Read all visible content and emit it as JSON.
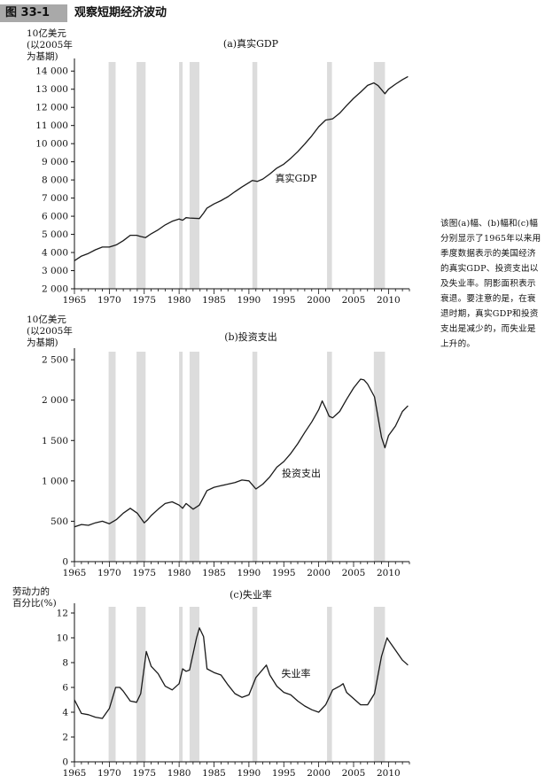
{
  "figure": {
    "label": "图 33-1",
    "title": "观察短期经济波动",
    "caption": "该图(a)幅、(b)幅和(c)幅分别显示了1965年以来用季度数据表示的美国经济的真实GDP、投资支出以及失业率。阴影面积表示衰退。要注意的是，在衰退时期，真实GDP和投资支出是减少的，而失业是上升的。"
  },
  "panels": [
    {
      "title": "(a)真实GDP",
      "ylabel_lines": [
        "10亿美元",
        "(以2005年",
        "为基期)"
      ],
      "annotation": "真实GDP"
    },
    {
      "title": "(b)投资支出",
      "ylabel_lines": [
        "10亿美元",
        "(以2005年",
        "为基期)"
      ],
      "annotation": "投资支出"
    },
    {
      "title": "(c)失业率",
      "ylabel_lines": [
        "劳动力的",
        "百分比(%)"
      ],
      "annotation": "失业率"
    }
  ],
  "chart_data": [
    {
      "type": "line",
      "title": "(a)真实GDP",
      "ylabel": "10亿美元(以2005年为基期)",
      "xlim": [
        1965,
        2013
      ],
      "ylim": [
        2000,
        14500
      ],
      "x_ticks": [
        1965,
        1970,
        1975,
        1980,
        1985,
        1990,
        1995,
        2000,
        2005,
        2010
      ],
      "x_tick_labels": [
        "1965",
        "1970",
        "1975",
        "1980",
        "1985",
        "1990",
        "1995",
        "2000",
        "2005",
        "2010"
      ],
      "y_ticks": [
        2000,
        3000,
        4000,
        5000,
        6000,
        7000,
        8000,
        9000,
        10000,
        11000,
        12000,
        13000,
        14000
      ],
      "y_tick_labels": [
        "2 000",
        "3 000",
        "4 000",
        "5 000",
        "6 000",
        "7 000",
        "8 000",
        "9 000",
        "10 000",
        "11 000",
        "12 000",
        "13 000",
        "14 000"
      ],
      "recessions": [
        [
          1969.9,
          1970.9
        ],
        [
          1973.9,
          1975.2
        ],
        [
          1980.0,
          1980.5
        ],
        [
          1981.5,
          1982.9
        ],
        [
          1990.5,
          1991.2
        ],
        [
          2001.2,
          2001.9
        ],
        [
          2007.9,
          2009.5
        ]
      ],
      "series": [
        {
          "x": [
            1965,
            1966,
            1967,
            1968,
            1969,
            1970,
            1971,
            1972,
            1973,
            1973.9,
            1974.5,
            1975.2,
            1976,
            1977,
            1978,
            1979,
            1980,
            1980.5,
            1981,
            1981.5,
            1982.9,
            1983.5,
            1984,
            1985,
            1986,
            1987,
            1988,
            1989,
            1990,
            1990.5,
            1991.2,
            1992,
            1993,
            1994,
            1995,
            1996,
            1997,
            1998,
            1999,
            2000,
            2001,
            2001.5,
            2002,
            2003,
            2004,
            2005,
            2006,
            2007,
            2007.9,
            2008.5,
            2009.5,
            2010,
            2011,
            2012,
            2012.8
          ],
          "y": [
            3550,
            3800,
            3950,
            4150,
            4300,
            4300,
            4420,
            4650,
            4950,
            4950,
            4880,
            4820,
            5030,
            5250,
            5520,
            5720,
            5850,
            5780,
            5920,
            5900,
            5870,
            6170,
            6450,
            6680,
            6860,
            7080,
            7350,
            7610,
            7850,
            7970,
            7920,
            8050,
            8330,
            8650,
            8870,
            9190,
            9560,
            9980,
            10430,
            10930,
            11300,
            11330,
            11370,
            11680,
            12100,
            12500,
            12840,
            13210,
            13350,
            13200,
            12750,
            13000,
            13280,
            13530,
            13700
          ]
        }
      ]
    },
    {
      "type": "line",
      "title": "(b)投资支出",
      "ylabel": "10亿美元(以2005年为基期)",
      "xlim": [
        1965,
        2013
      ],
      "ylim": [
        0,
        2600
      ],
      "x_ticks": [
        1965,
        1970,
        1975,
        1980,
        1985,
        1990,
        1995,
        2000,
        2005,
        2010
      ],
      "x_tick_labels": [
        "1965",
        "1970",
        "1975",
        "1980",
        "1985",
        "1990",
        "1995",
        "2000",
        "2005",
        "2010"
      ],
      "y_ticks": [
        0,
        500,
        1000,
        1500,
        2000,
        2500
      ],
      "y_tick_labels": [
        "0",
        "500",
        "1 000",
        "1 500",
        "2 000",
        "2 500"
      ],
      "recessions": [
        [
          1969.9,
          1970.9
        ],
        [
          1973.9,
          1975.2
        ],
        [
          1980.0,
          1980.5
        ],
        [
          1981.5,
          1982.9
        ],
        [
          1990.5,
          1991.2
        ],
        [
          2001.2,
          2001.9
        ],
        [
          2007.9,
          2009.5
        ]
      ],
      "series": [
        {
          "x": [
            1965,
            1966,
            1967,
            1968,
            1969,
            1970,
            1971,
            1972,
            1973,
            1974,
            1975,
            1975.5,
            1976,
            1977,
            1978,
            1979,
            1980,
            1980.5,
            1981,
            1982,
            1982.9,
            1984,
            1985,
            1986,
            1987,
            1988,
            1989,
            1990,
            1991,
            1992,
            1993,
            1994,
            1995,
            1996,
            1997,
            1998,
            1999,
            2000,
            2000.5,
            2001,
            2001.5,
            2002,
            2003,
            2004,
            2005,
            2006,
            2006.5,
            2007,
            2008,
            2009,
            2009.5,
            2010,
            2011,
            2012,
            2012.8
          ],
          "y": [
            430,
            460,
            450,
            480,
            500,
            470,
            520,
            600,
            660,
            600,
            480,
            520,
            570,
            650,
            720,
            740,
            700,
            660,
            720,
            650,
            700,
            880,
            920,
            940,
            960,
            980,
            1010,
            1000,
            900,
            960,
            1050,
            1170,
            1240,
            1340,
            1460,
            1600,
            1730,
            1880,
            1990,
            1900,
            1800,
            1780,
            1860,
            2010,
            2150,
            2260,
            2250,
            2200,
            2040,
            1540,
            1410,
            1560,
            1680,
            1860,
            1930
          ]
        }
      ]
    },
    {
      "type": "line",
      "title": "(c)失业率",
      "ylabel": "劳动力的百分比(%)",
      "xlim": [
        1965,
        2013
      ],
      "ylim": [
        0,
        12.5
      ],
      "x_ticks": [
        1965,
        1970,
        1975,
        1980,
        1985,
        1990,
        1995,
        2000,
        2005,
        2010
      ],
      "x_tick_labels": [
        "1965",
        "1970",
        "1975",
        "1980",
        "1985",
        "1990",
        "1995",
        "2000",
        "2005",
        "2010"
      ],
      "y_ticks": [
        0,
        2,
        4,
        6,
        8,
        10,
        12
      ],
      "y_tick_labels": [
        "0",
        "2",
        "4",
        "6",
        "8",
        "10",
        "12"
      ],
      "recessions": [
        [
          1969.9,
          1970.9
        ],
        [
          1973.9,
          1975.2
        ],
        [
          1980.0,
          1980.5
        ],
        [
          1981.5,
          1982.9
        ],
        [
          1990.5,
          1991.2
        ],
        [
          2001.2,
          2001.9
        ],
        [
          2007.9,
          2009.5
        ]
      ],
      "series": [
        {
          "x": [
            1965,
            1966,
            1967,
            1968,
            1969,
            1970,
            1970.9,
            1971.5,
            1972,
            1973,
            1973.9,
            1974.5,
            1975.3,
            1976,
            1977,
            1978,
            1979,
            1980,
            1980.5,
            1981,
            1981.5,
            1982.5,
            1982.9,
            1983.5,
            1984,
            1985,
            1986,
            1987,
            1988,
            1989,
            1990,
            1991,
            1992.5,
            1993,
            1994,
            1995,
            1996,
            1997,
            1998,
            1999,
            2000,
            2001,
            2002,
            2003,
            2003.5,
            2004,
            2005,
            2006,
            2007,
            2008,
            2009,
            2009.8,
            2010,
            2011,
            2012,
            2012.8
          ],
          "y": [
            5.0,
            3.9,
            3.8,
            3.6,
            3.5,
            4.3,
            6.0,
            6.0,
            5.7,
            4.9,
            4.8,
            5.5,
            8.9,
            7.7,
            7.1,
            6.1,
            5.8,
            6.3,
            7.5,
            7.3,
            7.4,
            10.0,
            10.8,
            10.1,
            7.5,
            7.2,
            7.0,
            6.2,
            5.5,
            5.2,
            5.4,
            6.8,
            7.8,
            7.0,
            6.1,
            5.6,
            5.4,
            4.9,
            4.5,
            4.2,
            4.0,
            4.6,
            5.8,
            6.1,
            6.3,
            5.6,
            5.1,
            4.6,
            4.6,
            5.5,
            8.5,
            10.0,
            9.8,
            9.0,
            8.2,
            7.8
          ]
        }
      ]
    }
  ],
  "colors": {
    "line": "#1a1a1a",
    "shade": "#dcdcdc",
    "axis": "#111111"
  }
}
